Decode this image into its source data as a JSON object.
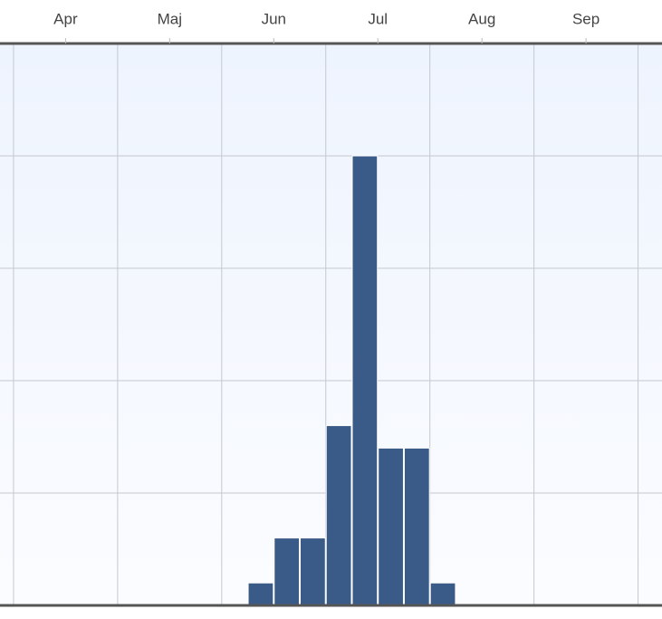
{
  "chart_data": {
    "type": "histogram",
    "bins": [
      5.75,
      6.0,
      6.25,
      6.5,
      6.75,
      7.0,
      7.25,
      7.5,
      7.75
    ],
    "values": [
      1,
      3,
      3,
      8,
      20,
      7,
      7,
      1
    ],
    "color": "#3a5a87",
    "xlim": [
      3.37,
      9.73
    ],
    "xticks": [
      {
        "value": 4,
        "label": "Apr"
      },
      {
        "value": 5,
        "label": "Maj"
      },
      {
        "value": 6,
        "label": "Jun"
      },
      {
        "value": 7,
        "label": "Jul"
      },
      {
        "value": 8,
        "label": "Aug"
      },
      {
        "value": 9,
        "label": "Sep"
      }
    ],
    "x_grid": [
      3.5,
      4.5,
      5.5,
      6.5,
      7.5,
      8.5,
      9.5
    ],
    "ylim": [
      0,
      25
    ],
    "yticks": [
      0,
      5,
      10,
      15,
      20,
      25
    ],
    "grid": true
  }
}
